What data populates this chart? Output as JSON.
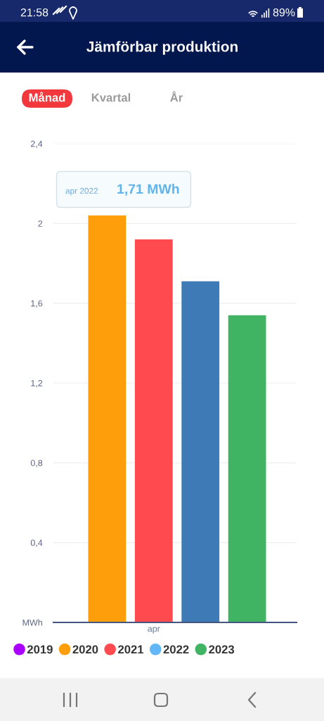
{
  "chart_data": {
    "type": "bar",
    "title": "Jämförbar produktion",
    "categories": [
      "apr"
    ],
    "series": [
      {
        "name": "2019",
        "color": "#aa00ff",
        "values": [
          null
        ]
      },
      {
        "name": "2020",
        "color": "#fe9e0a",
        "values": [
          2.04
        ]
      },
      {
        "name": "2021",
        "color": "#ff4b4f",
        "values": [
          1.92
        ]
      },
      {
        "name": "2022",
        "color": "#64b7f6",
        "colors": [
          "#3e7ab6"
        ],
        "values": [
          1.71
        ]
      },
      {
        "name": "2023",
        "color": "#41b463",
        "values": [
          1.54
        ]
      }
    ],
    "ylim": [
      0,
      2.4
    ],
    "yticks": [
      {
        "value": 0,
        "label": "MWh"
      },
      {
        "value": 0.4,
        "label": "0,4"
      },
      {
        "value": 0.8,
        "label": "0,8"
      },
      {
        "value": 1.2,
        "label": "1,2"
      },
      {
        "value": 1.6,
        "label": "1,6"
      },
      2,
      {
        "value": 2.4,
        "label": "2,4"
      }
    ],
    "grid": "y",
    "legend": "bottom",
    "annotations": [
      "21:58",
      "89%",
      "Månad",
      "Kvartal",
      "År",
      "apr 2022",
      "1,71 MWh"
    ]
  }
}
